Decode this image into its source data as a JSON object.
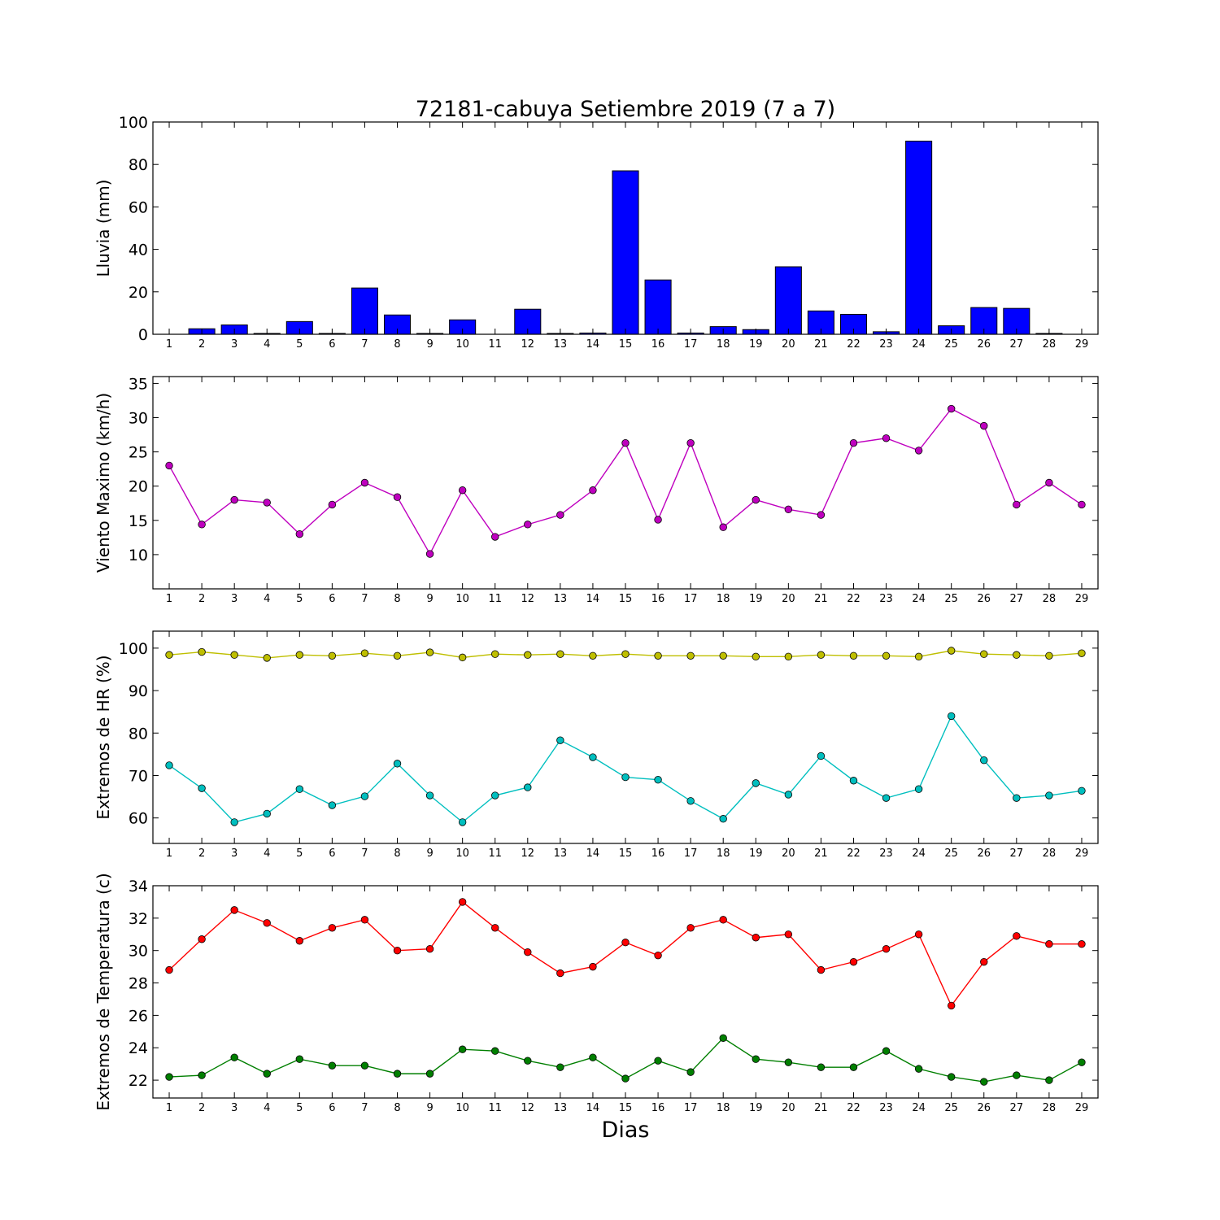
{
  "title": "72181-cabuya Setiembre 2019  (7 a 7)",
  "xlabel": "Dias",
  "chart_data": [
    {
      "type": "bar",
      "ylabel": "Lluvia (mm)",
      "ylim": [
        0,
        100
      ],
      "yticks": [
        0,
        20,
        40,
        60,
        80,
        100
      ],
      "x": [
        1,
        2,
        3,
        4,
        5,
        6,
        7,
        8,
        9,
        10,
        11,
        12,
        13,
        14,
        15,
        16,
        17,
        18,
        19,
        20,
        21,
        22,
        23,
        24,
        25,
        26,
        27,
        28,
        29
      ],
      "xlim": [
        0.5,
        29.5
      ],
      "series": [
        {
          "color": "#0000ff",
          "values": [
            0,
            2.6,
            4.4,
            0.4,
            6.0,
            0.4,
            21.8,
            9.1,
            0.4,
            6.8,
            0,
            11.8,
            0.4,
            0.6,
            77.0,
            25.6,
            0.6,
            3.6,
            2.2,
            31.8,
            11.0,
            9.4,
            1.2,
            91.0,
            4.0,
            12.6,
            12.2,
            0.4,
            0
          ]
        }
      ]
    },
    {
      "type": "line",
      "ylabel": "Viento Maximo (km/h)",
      "ylim": [
        5,
        36
      ],
      "yticks": [
        10,
        15,
        20,
        25,
        30,
        35
      ],
      "x": [
        1,
        2,
        3,
        4,
        5,
        6,
        7,
        8,
        9,
        10,
        11,
        12,
        13,
        14,
        15,
        16,
        17,
        18,
        19,
        20,
        21,
        22,
        23,
        24,
        25,
        26,
        27,
        28,
        29
      ],
      "xlim": [
        0.5,
        29.5
      ],
      "series": [
        {
          "color": "#bf00bf",
          "values": [
            23.0,
            14.4,
            18.0,
            17.6,
            13.0,
            17.3,
            20.5,
            18.4,
            10.1,
            19.4,
            12.6,
            14.4,
            15.8,
            19.4,
            26.3,
            15.1,
            26.3,
            14.0,
            18.0,
            16.6,
            15.8,
            26.3,
            27.0,
            25.2,
            31.3,
            28.8,
            17.3,
            20.5,
            17.3
          ]
        }
      ]
    },
    {
      "type": "line",
      "ylabel": "Extremos de HR (%)",
      "ylim": [
        54,
        104
      ],
      "yticks": [
        60,
        70,
        80,
        90,
        100
      ],
      "x": [
        1,
        2,
        3,
        4,
        5,
        6,
        7,
        8,
        9,
        10,
        11,
        12,
        13,
        14,
        15,
        16,
        17,
        18,
        19,
        20,
        21,
        22,
        23,
        24,
        25,
        26,
        27,
        28,
        29
      ],
      "xlim": [
        0.5,
        29.5
      ],
      "series": [
        {
          "color": "#bfbf00",
          "values": [
            98.4,
            99.1,
            98.4,
            97.7,
            98.4,
            98.2,
            98.8,
            98.2,
            99.0,
            97.8,
            98.6,
            98.4,
            98.6,
            98.2,
            98.6,
            98.2,
            98.2,
            98.2,
            98.0,
            98.0,
            98.4,
            98.2,
            98.2,
            98.0,
            99.4,
            98.6,
            98.4,
            98.2,
            98.8
          ]
        },
        {
          "color": "#00bfbf",
          "values": [
            72.4,
            67.0,
            59.0,
            61.0,
            66.8,
            63.0,
            65.1,
            72.8,
            65.3,
            59.0,
            65.3,
            67.2,
            78.3,
            74.3,
            69.6,
            69.0,
            64.0,
            59.8,
            68.2,
            65.5,
            74.6,
            68.8,
            64.7,
            66.8,
            84.0,
            73.6,
            64.7,
            65.3,
            66.4
          ]
        }
      ]
    },
    {
      "type": "line",
      "ylabel": "Extremos de Temperatura (c)",
      "ylim": [
        20.9,
        34.0
      ],
      "yticks": [
        22,
        24,
        26,
        28,
        30,
        32,
        34
      ],
      "x": [
        1,
        2,
        3,
        4,
        5,
        6,
        7,
        8,
        9,
        10,
        11,
        12,
        13,
        14,
        15,
        16,
        17,
        18,
        19,
        20,
        21,
        22,
        23,
        24,
        25,
        26,
        27,
        28,
        29
      ],
      "xlim": [
        0.5,
        29.5
      ],
      "series": [
        {
          "color": "#ff0000",
          "values": [
            28.8,
            30.7,
            32.5,
            31.7,
            30.6,
            31.4,
            31.9,
            30.0,
            30.1,
            33.0,
            31.4,
            29.9,
            28.6,
            29.0,
            30.5,
            29.7,
            31.4,
            31.9,
            30.8,
            31.0,
            28.8,
            29.3,
            30.1,
            31.0,
            26.6,
            29.3,
            30.9,
            30.4,
            30.4
          ]
        },
        {
          "color": "#007f00",
          "values": [
            22.2,
            22.3,
            23.4,
            22.4,
            23.3,
            22.9,
            22.9,
            22.4,
            22.4,
            23.9,
            23.8,
            23.2,
            22.8,
            23.4,
            22.1,
            23.2,
            22.5,
            24.6,
            23.3,
            23.1,
            22.8,
            22.8,
            23.8,
            22.7,
            22.2,
            21.9,
            22.3,
            22.0,
            23.1
          ]
        }
      ]
    }
  ]
}
